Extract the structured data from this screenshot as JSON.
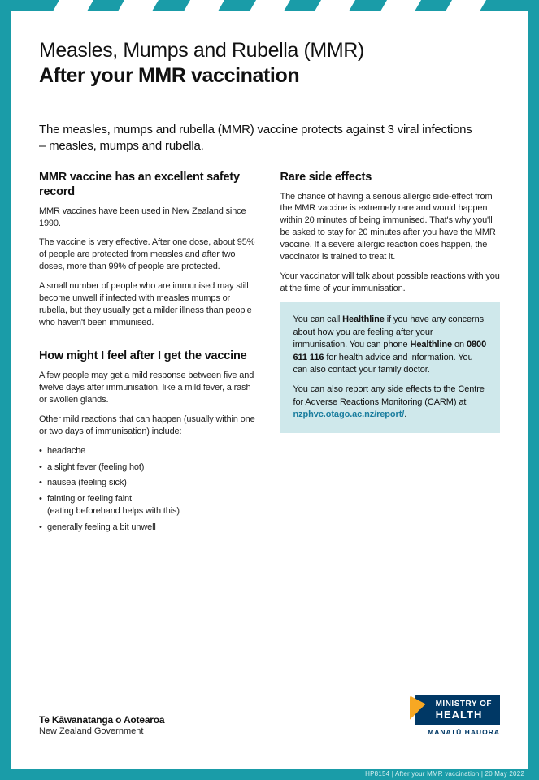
{
  "colors": {
    "teal": "#1a9ca8",
    "callout_bg": "#cfe8eb",
    "navy": "#003865",
    "link": "#1a7d9e"
  },
  "title_light": "Measles, Mumps and Rubella (MMR)",
  "title_bold": "After your MMR vaccination",
  "intro": "The measles, mumps and rubella (MMR) vaccine protects against 3 viral infections – measles, mumps and rubella.",
  "left": {
    "h1": "MMR vaccine has an excellent safety record",
    "p1": "MMR vaccines have been used in New Zealand since 1990.",
    "p2": "The vaccine is very effective. After one dose, about 95% of people are protected from measles and after two doses, more than 99% of people are protected.",
    "p3": "A small number of people who are immunised may still become unwell if infected with measles mumps or rubella, but they usually get a milder illness than people who haven't been immunised.",
    "h2": "How might I feel after I get the vaccine",
    "p4": "A few people may get a mild response between five and twelve days after immunisation, like a mild fever, a rash or swollen glands.",
    "p5": "Other mild reactions that can happen (usually within one or two days of immunisation) include:",
    "bullets": {
      "b1": "headache",
      "b2": "a slight fever (feeling hot)",
      "b3": "nausea (feeling sick)",
      "b4a": "fainting or feeling faint",
      "b4b": "(eating beforehand helps with this)",
      "b5": "generally feeling a bit unwell"
    }
  },
  "right": {
    "h1": "Rare side effects",
    "p1": "The chance of having a serious allergic side-effect from the MMR vaccine is extremely rare and would happen within 20 minutes of being immunised. That's why you'll be asked to stay for 20 minutes after you have the MMR vaccine. If a severe allergic reaction does happen, the vaccinator is trained to treat it.",
    "p2": "Your vaccinator will talk about possible reactions with you at the time of your immunisation.",
    "callout": {
      "p1a": "You can call ",
      "p1b": "Healthline",
      "p1c": " if you have any concerns about how you are feeling after your immunisation. You can phone ",
      "p1d": "Healthline",
      "p1e": " on ",
      "p1f": "0800 611 116",
      "p1g": " for health advice and information. You can also contact your family doctor.",
      "p2a": "You can also report any side effects to the Centre for Adverse Reactions Monitoring (CARM) at ",
      "p2b": "nzphvc.otago.ac.nz/report/",
      "p2c": "."
    }
  },
  "footer": {
    "gov_mi": "Te Kāwanatanga o Aotearoa",
    "gov_en": "New Zealand Government",
    "moh1": "MINISTRY OF",
    "moh2": "HEALTH",
    "moh_sub": "MANATŪ HAUORA"
  },
  "bottom": "HP8154  |  After your MMR vaccination  |  20 May 2022"
}
